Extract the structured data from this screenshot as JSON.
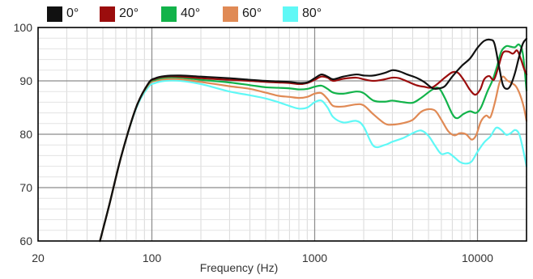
{
  "chart_data": {
    "type": "line",
    "xlabel": "Frequency (Hz)",
    "ylabel": "",
    "xscale": "log",
    "xlim": [
      20,
      20000
    ],
    "ylim": [
      60,
      100
    ],
    "x_ticks": [
      20,
      100,
      1000,
      10000
    ],
    "x_tick_labels": [
      "20",
      "100",
      "1000",
      "10000"
    ],
    "y_ticks": [
      60,
      70,
      80,
      90,
      100
    ],
    "y_tick_labels": [
      "60",
      "70",
      "80",
      "90",
      "100"
    ],
    "grid": true,
    "legend": "top-left",
    "series": [
      {
        "name": "0°",
        "color": "#111111",
        "points": [
          [
            48,
            59.5
          ],
          [
            55,
            67
          ],
          [
            65,
            76
          ],
          [
            80,
            85
          ],
          [
            95,
            89.5
          ],
          [
            105,
            90.5
          ],
          [
            120,
            90.9
          ],
          [
            150,
            91
          ],
          [
            200,
            90.8
          ],
          [
            300,
            90.5
          ],
          [
            400,
            90.2
          ],
          [
            500,
            90
          ],
          [
            600,
            89.9
          ],
          [
            700,
            89.8
          ],
          [
            800,
            89.6
          ],
          [
            900,
            89.7
          ],
          [
            1000,
            90.5
          ],
          [
            1100,
            91.2
          ],
          [
            1200,
            90.8
          ],
          [
            1300,
            90.3
          ],
          [
            1500,
            90.8
          ],
          [
            1800,
            91.2
          ],
          [
            2000,
            91
          ],
          [
            2300,
            91
          ],
          [
            2700,
            91.5
          ],
          [
            3000,
            92
          ],
          [
            3300,
            91.8
          ],
          [
            3700,
            91.2
          ],
          [
            4200,
            90.6
          ],
          [
            4700,
            89.8
          ],
          [
            5300,
            88.6
          ],
          [
            5800,
            88.6
          ],
          [
            6300,
            89
          ],
          [
            7000,
            90.8
          ],
          [
            8000,
            92.8
          ],
          [
            9000,
            94.2
          ],
          [
            10000,
            96.2
          ],
          [
            11000,
            97.5
          ],
          [
            12000,
            97.7
          ],
          [
            12700,
            97
          ],
          [
            13500,
            93
          ],
          [
            14300,
            89.3
          ],
          [
            15200,
            88.5
          ],
          [
            16000,
            89.2
          ],
          [
            17000,
            91.5
          ],
          [
            18000,
            94.5
          ],
          [
            19000,
            97
          ],
          [
            20000,
            97.9
          ]
        ]
      },
      {
        "name": "20°",
        "color": "#9b0d0d",
        "points": [
          [
            48,
            59.5
          ],
          [
            55,
            67
          ],
          [
            65,
            76
          ],
          [
            80,
            85
          ],
          [
            95,
            89.5
          ],
          [
            105,
            90.4
          ],
          [
            120,
            90.8
          ],
          [
            150,
            90.8
          ],
          [
            200,
            90.5
          ],
          [
            300,
            90.2
          ],
          [
            400,
            90
          ],
          [
            500,
            89.8
          ],
          [
            600,
            89.7
          ],
          [
            700,
            89.6
          ],
          [
            800,
            89.4
          ],
          [
            900,
            89.6
          ],
          [
            1000,
            90.2
          ],
          [
            1100,
            90.8
          ],
          [
            1200,
            90.6
          ],
          [
            1300,
            90
          ],
          [
            1500,
            90.4
          ],
          [
            1800,
            90.6
          ],
          [
            2000,
            90.3
          ],
          [
            2300,
            90
          ],
          [
            2700,
            90.3
          ],
          [
            3000,
            90.6
          ],
          [
            3300,
            90.5
          ],
          [
            3700,
            89.9
          ],
          [
            4200,
            89.2
          ],
          [
            4700,
            88.9
          ],
          [
            5300,
            88.8
          ],
          [
            6300,
            90.6
          ],
          [
            7000,
            91.6
          ],
          [
            7600,
            91.5
          ],
          [
            8300,
            90
          ],
          [
            9000,
            88.3
          ],
          [
            9700,
            87.4
          ],
          [
            10400,
            88.4
          ],
          [
            11000,
            90.3
          ],
          [
            11800,
            90.9
          ],
          [
            12600,
            90.2
          ],
          [
            13400,
            92.5
          ],
          [
            14300,
            95.2
          ],
          [
            15400,
            95.5
          ],
          [
            16500,
            95.1
          ],
          [
            17500,
            95.7
          ],
          [
            18400,
            94.2
          ],
          [
            19300,
            92.3
          ],
          [
            20000,
            91.2
          ]
        ]
      },
      {
        "name": "40°",
        "color": "#12b34a",
        "points": [
          [
            48,
            59.5
          ],
          [
            55,
            67
          ],
          [
            65,
            76
          ],
          [
            80,
            85
          ],
          [
            95,
            89.4
          ],
          [
            105,
            90.2
          ],
          [
            120,
            90.6
          ],
          [
            150,
            90.6
          ],
          [
            200,
            90.2
          ],
          [
            300,
            89.7
          ],
          [
            400,
            89.2
          ],
          [
            500,
            88.8
          ],
          [
            600,
            88.7
          ],
          [
            700,
            88.6
          ],
          [
            800,
            88.4
          ],
          [
            900,
            88.5
          ],
          [
            1000,
            88.9
          ],
          [
            1100,
            89.1
          ],
          [
            1200,
            88.5
          ],
          [
            1300,
            87.8
          ],
          [
            1500,
            87.6
          ],
          [
            1800,
            88
          ],
          [
            2000,
            87.7
          ],
          [
            2300,
            86.3
          ],
          [
            2700,
            86.1
          ],
          [
            3000,
            86.3
          ],
          [
            3500,
            86
          ],
          [
            4000,
            85.9
          ],
          [
            4500,
            86.8
          ],
          [
            5300,
            88.4
          ],
          [
            5800,
            88.6
          ],
          [
            6300,
            86.8
          ],
          [
            7000,
            83.8
          ],
          [
            7500,
            83
          ],
          [
            8200,
            83.8
          ],
          [
            9000,
            84.3
          ],
          [
            9800,
            84
          ],
          [
            10500,
            85
          ],
          [
            11500,
            88
          ],
          [
            12400,
            90.2
          ],
          [
            13200,
            92.8
          ],
          [
            14000,
            95.5
          ],
          [
            15000,
            96.5
          ],
          [
            16000,
            96.4
          ],
          [
            17000,
            96.3
          ],
          [
            18000,
            96.8
          ],
          [
            19000,
            95
          ],
          [
            20000,
            88.2
          ]
        ]
      },
      {
        "name": "60°",
        "color": "#e08a55",
        "points": [
          [
            48,
            59.5
          ],
          [
            55,
            67
          ],
          [
            65,
            76
          ],
          [
            80,
            85
          ],
          [
            95,
            89.2
          ],
          [
            105,
            90
          ],
          [
            120,
            90.3
          ],
          [
            150,
            90.3
          ],
          [
            200,
            89.8
          ],
          [
            300,
            89
          ],
          [
            400,
            88.5
          ],
          [
            500,
            87.8
          ],
          [
            600,
            87.2
          ],
          [
            700,
            87
          ],
          [
            800,
            86.8
          ],
          [
            900,
            87
          ],
          [
            1000,
            87.6
          ],
          [
            1100,
            87.7
          ],
          [
            1200,
            86.6
          ],
          [
            1300,
            85.3
          ],
          [
            1500,
            85.2
          ],
          [
            1800,
            85.6
          ],
          [
            2000,
            85.4
          ],
          [
            2300,
            83.7
          ],
          [
            2700,
            82
          ],
          [
            3000,
            81.8
          ],
          [
            3500,
            82.1
          ],
          [
            4000,
            82.7
          ],
          [
            4500,
            84.2
          ],
          [
            5000,
            84.7
          ],
          [
            5500,
            84.4
          ],
          [
            6000,
            82.7
          ],
          [
            6600,
            80.6
          ],
          [
            7200,
            79.8
          ],
          [
            7800,
            80.2
          ],
          [
            8500,
            80
          ],
          [
            9200,
            79
          ],
          [
            9800,
            79.8
          ],
          [
            10500,
            82.4
          ],
          [
            11300,
            83.5
          ],
          [
            12000,
            83.2
          ],
          [
            12800,
            86
          ],
          [
            13600,
            89.5
          ],
          [
            14300,
            90.8
          ],
          [
            15200,
            90.1
          ],
          [
            16200,
            89.6
          ],
          [
            17200,
            89
          ],
          [
            18200,
            87.5
          ],
          [
            19200,
            85.2
          ],
          [
            20000,
            82.5
          ]
        ]
      },
      {
        "name": "80°",
        "color": "#5ff8f6",
        "points": [
          [
            48,
            59.5
          ],
          [
            55,
            67
          ],
          [
            65,
            76
          ],
          [
            80,
            84.8
          ],
          [
            95,
            88.8
          ],
          [
            105,
            89.6
          ],
          [
            120,
            90
          ],
          [
            150,
            90
          ],
          [
            200,
            89.4
          ],
          [
            300,
            88
          ],
          [
            400,
            87.3
          ],
          [
            500,
            86.7
          ],
          [
            600,
            86
          ],
          [
            700,
            85.3
          ],
          [
            800,
            84.8
          ],
          [
            900,
            85
          ],
          [
            1000,
            86
          ],
          [
            1100,
            86.3
          ],
          [
            1200,
            85
          ],
          [
            1300,
            83.2
          ],
          [
            1500,
            82.2
          ],
          [
            1800,
            82.5
          ],
          [
            2000,
            81.4
          ],
          [
            2300,
            77.8
          ],
          [
            2700,
            78
          ],
          [
            3000,
            78.6
          ],
          [
            3500,
            79.3
          ],
          [
            4000,
            80.2
          ],
          [
            4500,
            80.7
          ],
          [
            5000,
            79.7
          ],
          [
            5500,
            77.8
          ],
          [
            6000,
            76.3
          ],
          [
            6600,
            76.5
          ],
          [
            7200,
            75.7
          ],
          [
            7800,
            74.8
          ],
          [
            8500,
            74.5
          ],
          [
            9200,
            74.9
          ],
          [
            10000,
            76.7
          ],
          [
            11000,
            78.5
          ],
          [
            12000,
            79.6
          ],
          [
            13000,
            81.2
          ],
          [
            14000,
            80.8
          ],
          [
            15000,
            79.9
          ],
          [
            16000,
            80.2
          ],
          [
            17000,
            80.8
          ],
          [
            18000,
            80.1
          ],
          [
            19000,
            77.3
          ],
          [
            20000,
            74
          ]
        ]
      }
    ]
  }
}
